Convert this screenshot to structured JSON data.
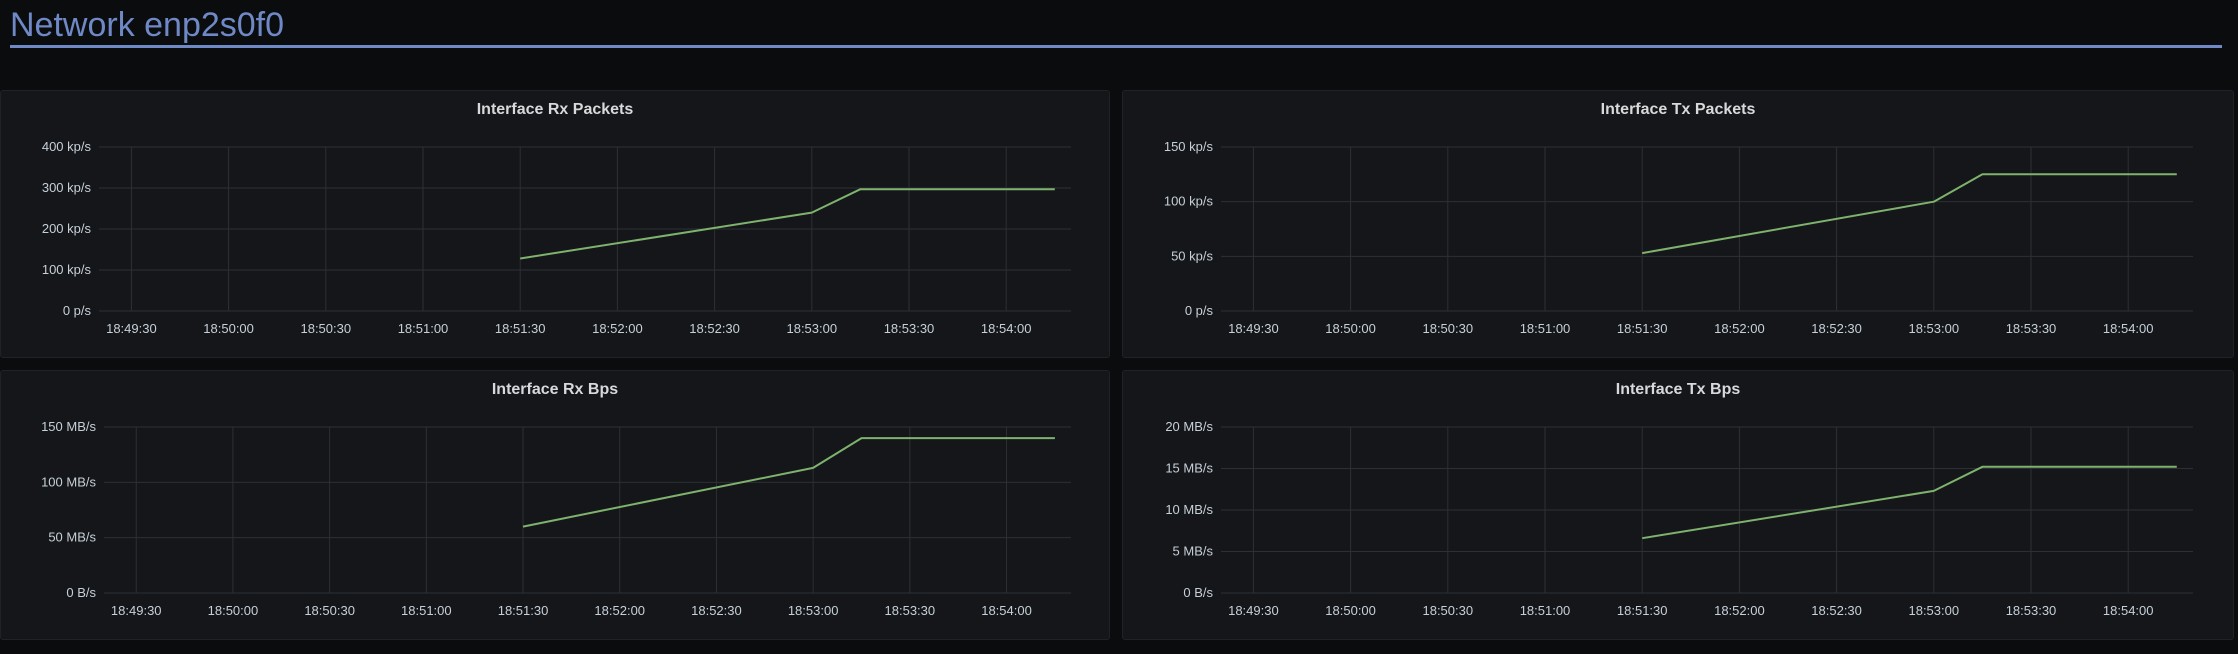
{
  "row": {
    "title": "Network enp2s0f0"
  },
  "colors": {
    "row_accent": "#6f88c6",
    "series_line": "#7eb26d",
    "panel_bg": "#141619",
    "page_bg": "#0b0c0e"
  },
  "chart_data": [
    {
      "type": "line",
      "title": "Interface Rx Packets",
      "x_ticks": [
        "18:49:30",
        "18:50:00",
        "18:50:30",
        "18:51:00",
        "18:51:30",
        "18:52:00",
        "18:52:30",
        "18:53:00",
        "18:53:30",
        "18:54:00"
      ],
      "xlim": [
        "18:49:20",
        "18:54:20"
      ],
      "y_ticks": [
        "0 p/s",
        "100 kp/s",
        "200 kp/s",
        "300 kp/s",
        "400 kp/s"
      ],
      "ylim": [
        0,
        400000
      ],
      "grid": true,
      "series": [
        {
          "x": [
            "18:51:30",
            "18:53:00",
            "18:53:15",
            "18:54:15"
          ],
          "values": [
            128000,
            240000,
            297000,
            297000
          ]
        }
      ]
    },
    {
      "type": "line",
      "title": "Interface Tx Packets",
      "x_ticks": [
        "18:49:30",
        "18:50:00",
        "18:50:30",
        "18:51:00",
        "18:51:30",
        "18:52:00",
        "18:52:30",
        "18:53:00",
        "18:53:30",
        "18:54:00"
      ],
      "xlim": [
        "18:49:20",
        "18:54:20"
      ],
      "y_ticks": [
        "0 p/s",
        "50 kp/s",
        "100 kp/s",
        "150 kp/s"
      ],
      "ylim": [
        0,
        150000
      ],
      "grid": true,
      "series": [
        {
          "x": [
            "18:51:30",
            "18:53:00",
            "18:53:15",
            "18:54:15"
          ],
          "values": [
            53000,
            100000,
            125000,
            125000
          ]
        }
      ]
    },
    {
      "type": "line",
      "title": "Interface Rx Bps",
      "x_ticks": [
        "18:49:30",
        "18:50:00",
        "18:50:30",
        "18:51:00",
        "18:51:30",
        "18:52:00",
        "18:52:30",
        "18:53:00",
        "18:53:30",
        "18:54:00"
      ],
      "xlim": [
        "18:49:20",
        "18:54:20"
      ],
      "y_ticks": [
        "0 B/s",
        "50 MB/s",
        "100 MB/s",
        "150 MB/s"
      ],
      "ylim": [
        0,
        150
      ],
      "grid": true,
      "series": [
        {
          "x": [
            "18:51:30",
            "18:53:00",
            "18:53:15",
            "18:54:15"
          ],
          "values": [
            60,
            113,
            140,
            140
          ]
        }
      ]
    },
    {
      "type": "line",
      "title": "Interface Tx Bps",
      "x_ticks": [
        "18:49:30",
        "18:50:00",
        "18:50:30",
        "18:51:00",
        "18:51:30",
        "18:52:00",
        "18:52:30",
        "18:53:00",
        "18:53:30",
        "18:54:00"
      ],
      "xlim": [
        "18:49:20",
        "18:54:20"
      ],
      "y_ticks": [
        "0 B/s",
        "5 MB/s",
        "10 MB/s",
        "15 MB/s",
        "20 MB/s"
      ],
      "ylim": [
        0,
        20
      ],
      "grid": true,
      "series": [
        {
          "x": [
            "18:51:30",
            "18:53:00",
            "18:53:15",
            "18:54:15"
          ],
          "values": [
            6.6,
            12.3,
            15.2,
            15.2
          ]
        }
      ]
    }
  ]
}
